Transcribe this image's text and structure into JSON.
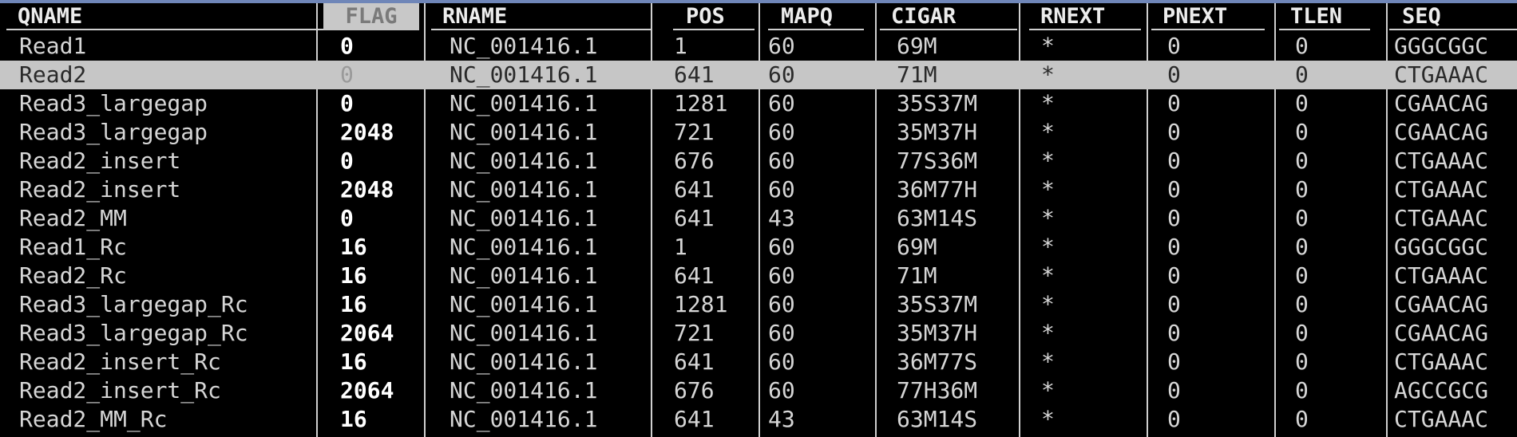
{
  "columns": [
    {
      "key": "qname",
      "label": "QNAME"
    },
    {
      "key": "flag",
      "label": "FLAG"
    },
    {
      "key": "rname",
      "label": "RNAME"
    },
    {
      "key": "pos",
      "label": "POS"
    },
    {
      "key": "mapq",
      "label": "MAPQ"
    },
    {
      "key": "cigar",
      "label": "CIGAR"
    },
    {
      "key": "rnext",
      "label": "RNEXT"
    },
    {
      "key": "pnext",
      "label": "PNEXT"
    },
    {
      "key": "tlen",
      "label": "TLEN"
    },
    {
      "key": "seq",
      "label": "SEQ"
    }
  ],
  "selected_row": 1,
  "rows": [
    {
      "qname": "Read1",
      "flag": "0",
      "rname": "NC_001416.1",
      "pos": "1",
      "mapq": "60",
      "cigar": "69M",
      "rnext": "*",
      "pnext": "0",
      "tlen": "0",
      "seq": "GGGCGGC"
    },
    {
      "qname": "Read2",
      "flag": "0",
      "rname": "NC_001416.1",
      "pos": "641",
      "mapq": "60",
      "cigar": "71M",
      "rnext": "*",
      "pnext": "0",
      "tlen": "0",
      "seq": "CTGAAAC"
    },
    {
      "qname": "Read3_largegap",
      "flag": "0",
      "rname": "NC_001416.1",
      "pos": "1281",
      "mapq": "60",
      "cigar": "35S37M",
      "rnext": "*",
      "pnext": "0",
      "tlen": "0",
      "seq": "CGAACAG"
    },
    {
      "qname": "Read3_largegap",
      "flag": "2048",
      "rname": "NC_001416.1",
      "pos": "721",
      "mapq": "60",
      "cigar": "35M37H",
      "rnext": "*",
      "pnext": "0",
      "tlen": "0",
      "seq": "CGAACAG"
    },
    {
      "qname": "Read2_insert",
      "flag": "0",
      "rname": "NC_001416.1",
      "pos": "676",
      "mapq": "60",
      "cigar": "77S36M",
      "rnext": "*",
      "pnext": "0",
      "tlen": "0",
      "seq": "CTGAAAC"
    },
    {
      "qname": "Read2_insert",
      "flag": "2048",
      "rname": "NC_001416.1",
      "pos": "641",
      "mapq": "60",
      "cigar": "36M77H",
      "rnext": "*",
      "pnext": "0",
      "tlen": "0",
      "seq": "CTGAAAC"
    },
    {
      "qname": "Read2_MM",
      "flag": "0",
      "rname": "NC_001416.1",
      "pos": "641",
      "mapq": "43",
      "cigar": "63M14S",
      "rnext": "*",
      "pnext": "0",
      "tlen": "0",
      "seq": "CTGAAAC"
    },
    {
      "qname": "Read1_Rc",
      "flag": "16",
      "rname": "NC_001416.1",
      "pos": "1",
      "mapq": "60",
      "cigar": "69M",
      "rnext": "*",
      "pnext": "0",
      "tlen": "0",
      "seq": "GGGCGGC"
    },
    {
      "qname": "Read2_Rc",
      "flag": "16",
      "rname": "NC_001416.1",
      "pos": "641",
      "mapq": "60",
      "cigar": "71M",
      "rnext": "*",
      "pnext": "0",
      "tlen": "0",
      "seq": "CTGAAAC"
    },
    {
      "qname": "Read3_largegap_Rc",
      "flag": "16",
      "rname": "NC_001416.1",
      "pos": "1281",
      "mapq": "60",
      "cigar": "35S37M",
      "rnext": "*",
      "pnext": "0",
      "tlen": "0",
      "seq": "CGAACAG"
    },
    {
      "qname": "Read3_largegap_Rc",
      "flag": "2064",
      "rname": "NC_001416.1",
      "pos": "721",
      "mapq": "60",
      "cigar": "35M37H",
      "rnext": "*",
      "pnext": "0",
      "tlen": "0",
      "seq": "CGAACAG"
    },
    {
      "qname": "Read2_insert_Rc",
      "flag": "16",
      "rname": "NC_001416.1",
      "pos": "641",
      "mapq": "60",
      "cigar": "36M77S",
      "rnext": "*",
      "pnext": "0",
      "tlen": "0",
      "seq": "CTGAAAC"
    },
    {
      "qname": "Read2_insert_Rc",
      "flag": "2064",
      "rname": "NC_001416.1",
      "pos": "676",
      "mapq": "60",
      "cigar": "77H36M",
      "rnext": "*",
      "pnext": "0",
      "tlen": "0",
      "seq": "AGCCGCG"
    },
    {
      "qname": "Read2_MM_Rc",
      "flag": "16",
      "rname": "NC_001416.1",
      "pos": "641",
      "mapq": "43",
      "cigar": "63M14S",
      "rnext": "*",
      "pnext": "0",
      "tlen": "0",
      "seq": "CTGAAAC"
    }
  ]
}
